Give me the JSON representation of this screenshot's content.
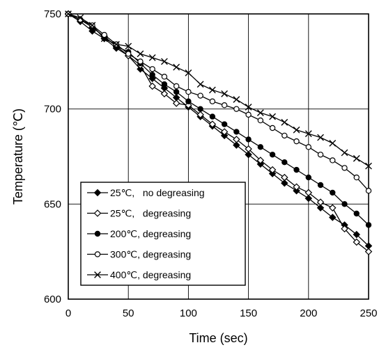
{
  "chart_data": {
    "type": "line",
    "title": "",
    "xlabel": "Time (sec)",
    "ylabel": "Temperature (℃)",
    "xlim": [
      0,
      250
    ],
    "ylim": [
      600,
      750
    ],
    "xticks": [
      0,
      50,
      100,
      150,
      200,
      250
    ],
    "yticks": [
      600,
      650,
      700,
      750
    ],
    "x_tick_labels": [
      "0",
      "50",
      "100",
      "150",
      "200",
      "250"
    ],
    "y_tick_labels": [
      "600",
      "650",
      "700",
      "750"
    ],
    "grid": true,
    "legend_position": "lower-left",
    "series": [
      {
        "name": "25℃,   no degreasing",
        "marker": "diamond-filled",
        "color": "#000000",
        "x": [
          0,
          10,
          20,
          30,
          40,
          50,
          60,
          70,
          80,
          90,
          100,
          110,
          120,
          130,
          140,
          150,
          160,
          170,
          180,
          190,
          200,
          210,
          220,
          230,
          240,
          250
        ],
        "y": [
          750,
          746,
          741,
          737,
          732,
          728,
          721,
          716,
          711,
          706,
          701,
          696,
          691,
          686,
          681,
          676,
          671,
          666,
          661,
          657,
          653,
          648,
          643,
          639,
          634,
          628
        ]
      },
      {
        "name": "25℃,   degreasing",
        "marker": "diamond-open",
        "color": "#000000",
        "x": [
          0,
          10,
          20,
          30,
          40,
          50,
          60,
          70,
          80,
          90,
          100,
          110,
          120,
          130,
          140,
          150,
          160,
          170,
          180,
          190,
          200,
          210,
          220,
          230,
          240,
          250
        ],
        "y": [
          750,
          747,
          743,
          738,
          733,
          728,
          723,
          712,
          708,
          703,
          702,
          697,
          692,
          688,
          684,
          679,
          673,
          668,
          664,
          659,
          656,
          651,
          648,
          637,
          630,
          625
        ]
      },
      {
        "name": "200℃, degreasing",
        "marker": "circle-filled",
        "color": "#000000",
        "x": [
          0,
          10,
          20,
          30,
          40,
          50,
          60,
          70,
          80,
          90,
          100,
          110,
          120,
          130,
          140,
          150,
          160,
          170,
          180,
          190,
          200,
          210,
          220,
          230,
          240,
          250
        ],
        "y": [
          750,
          747,
          743,
          738,
          733,
          730,
          724,
          718,
          713,
          709,
          704,
          700,
          696,
          692,
          688,
          684,
          680,
          676,
          672,
          668,
          664,
          660,
          656,
          650,
          645,
          639
        ]
      },
      {
        "name": "300℃, degreasing",
        "marker": "circle-open",
        "color": "#000000",
        "x": [
          0,
          10,
          20,
          30,
          40,
          50,
          60,
          70,
          80,
          90,
          100,
          110,
          120,
          130,
          140,
          150,
          160,
          170,
          180,
          190,
          200,
          210,
          220,
          230,
          240,
          250
        ],
        "y": [
          750,
          747,
          744,
          739,
          734,
          729,
          725,
          721,
          717,
          712,
          709,
          707,
          704,
          702,
          700,
          697,
          694,
          690,
          686,
          683,
          680,
          676,
          673,
          669,
          664,
          657
        ]
      },
      {
        "name": "400℃, degreasing",
        "marker": "x",
        "color": "#000000",
        "x": [
          0,
          10,
          20,
          30,
          40,
          50,
          60,
          70,
          80,
          90,
          100,
          110,
          120,
          130,
          140,
          150,
          160,
          170,
          180,
          190,
          200,
          210,
          220,
          230,
          240,
          250
        ],
        "y": [
          750,
          748,
          744,
          737,
          734,
          733,
          729,
          727,
          725,
          722,
          719,
          713,
          710,
          708,
          705,
          701,
          698,
          696,
          693,
          689,
          687,
          685,
          682,
          677,
          674,
          670
        ]
      }
    ]
  }
}
